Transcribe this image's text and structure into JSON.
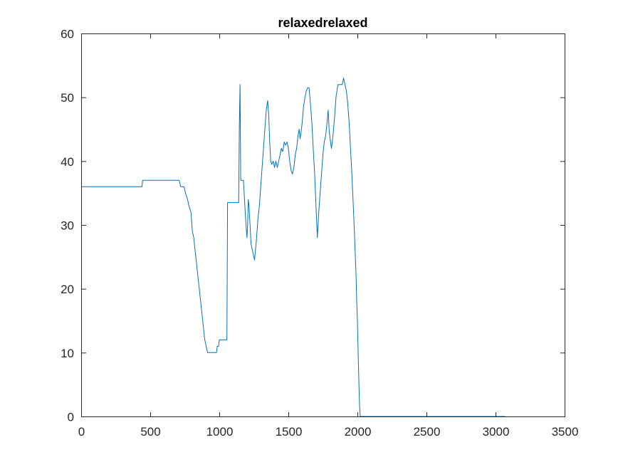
{
  "chart_data": {
    "type": "line",
    "title": "relaxedrelaxed",
    "xlabel": "",
    "ylabel": "",
    "xlim": [
      0,
      3500
    ],
    "ylim": [
      0,
      60
    ],
    "x_ticks": [
      0,
      500,
      1000,
      1500,
      2000,
      2500,
      3000,
      3500
    ],
    "y_ticks": [
      0,
      10,
      20,
      30,
      40,
      50,
      60
    ],
    "grid": false,
    "legend": "none",
    "series": [
      {
        "color": "#0072BD",
        "points": [
          [
            0,
            36
          ],
          [
            440,
            36
          ],
          [
            445,
            37
          ],
          [
            710,
            37
          ],
          [
            720,
            36
          ],
          [
            745,
            36
          ],
          [
            755,
            35
          ],
          [
            770,
            34
          ],
          [
            780,
            33
          ],
          [
            795,
            32
          ],
          [
            805,
            29
          ],
          [
            815,
            28
          ],
          [
            825,
            26
          ],
          [
            835,
            24
          ],
          [
            845,
            22
          ],
          [
            855,
            20
          ],
          [
            865,
            18
          ],
          [
            875,
            16
          ],
          [
            885,
            14
          ],
          [
            895,
            12
          ],
          [
            905,
            11
          ],
          [
            915,
            10
          ],
          [
            980,
            10
          ],
          [
            985,
            11
          ],
          [
            995,
            11
          ],
          [
            1000,
            12
          ],
          [
            1055,
            12
          ],
          [
            1060,
            33.5
          ],
          [
            1140,
            33.5
          ],
          [
            1145,
            45
          ],
          [
            1150,
            52
          ],
          [
            1155,
            37
          ],
          [
            1175,
            37
          ],
          [
            1180,
            35
          ],
          [
            1190,
            31
          ],
          [
            1200,
            28
          ],
          [
            1205,
            30
          ],
          [
            1210,
            34
          ],
          [
            1215,
            33
          ],
          [
            1220,
            31
          ],
          [
            1230,
            27
          ],
          [
            1240,
            26
          ],
          [
            1250,
            25
          ],
          [
            1255,
            24.5
          ],
          [
            1262,
            26
          ],
          [
            1270,
            28
          ],
          [
            1280,
            31
          ],
          [
            1290,
            33
          ],
          [
            1300,
            36
          ],
          [
            1310,
            39
          ],
          [
            1320,
            42
          ],
          [
            1330,
            45
          ],
          [
            1340,
            48
          ],
          [
            1350,
            49.5
          ],
          [
            1358,
            47
          ],
          [
            1365,
            43
          ],
          [
            1372,
            40
          ],
          [
            1380,
            39.5
          ],
          [
            1390,
            40
          ],
          [
            1400,
            39
          ],
          [
            1410,
            40
          ],
          [
            1420,
            39
          ],
          [
            1430,
            40
          ],
          [
            1440,
            41
          ],
          [
            1450,
            42
          ],
          [
            1460,
            41.5
          ],
          [
            1470,
            43
          ],
          [
            1480,
            42.5
          ],
          [
            1490,
            43
          ],
          [
            1500,
            42
          ],
          [
            1510,
            40
          ],
          [
            1520,
            38.5
          ],
          [
            1530,
            38
          ],
          [
            1540,
            39
          ],
          [
            1550,
            41
          ],
          [
            1560,
            42
          ],
          [
            1570,
            44
          ],
          [
            1578,
            45
          ],
          [
            1585,
            43.5
          ],
          [
            1592,
            44.5
          ],
          [
            1600,
            46
          ],
          [
            1610,
            48.5
          ],
          [
            1620,
            50
          ],
          [
            1630,
            51
          ],
          [
            1640,
            51.5
          ],
          [
            1650,
            51.5
          ],
          [
            1660,
            49
          ],
          [
            1670,
            46
          ],
          [
            1680,
            42
          ],
          [
            1690,
            38
          ],
          [
            1700,
            33
          ],
          [
            1710,
            28
          ],
          [
            1720,
            32
          ],
          [
            1730,
            35
          ],
          [
            1740,
            38
          ],
          [
            1750,
            41
          ],
          [
            1760,
            43
          ],
          [
            1770,
            44
          ],
          [
            1780,
            46
          ],
          [
            1788,
            48
          ],
          [
            1795,
            45
          ],
          [
            1805,
            43
          ],
          [
            1812,
            42
          ],
          [
            1818,
            43
          ],
          [
            1825,
            44.5
          ],
          [
            1835,
            47
          ],
          [
            1845,
            50
          ],
          [
            1855,
            51.5
          ],
          [
            1860,
            52
          ],
          [
            1890,
            52
          ],
          [
            1895,
            52.5
          ],
          [
            1900,
            53
          ],
          [
            1905,
            52.5
          ],
          [
            1910,
            52
          ],
          [
            1920,
            51
          ],
          [
            1930,
            49
          ],
          [
            1940,
            46
          ],
          [
            1950,
            42
          ],
          [
            1960,
            38
          ],
          [
            1970,
            33
          ],
          [
            1980,
            28
          ],
          [
            1990,
            22
          ],
          [
            1995,
            18
          ],
          [
            2000,
            15
          ],
          [
            2005,
            10
          ],
          [
            2010,
            6
          ],
          [
            2015,
            2
          ],
          [
            2020,
            0
          ],
          [
            3070,
            0
          ]
        ]
      }
    ]
  }
}
